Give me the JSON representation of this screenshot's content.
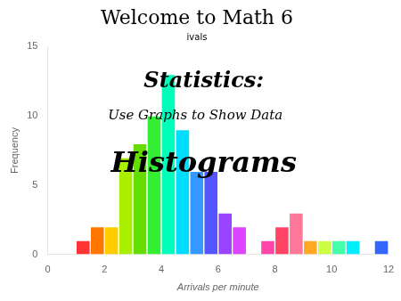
{
  "chart_data": {
    "type": "histogram",
    "title": "Welcome to Math 6",
    "subtitle": "ivals",
    "annotations": [
      "Statistics:",
      "Use Graphs to Show Data",
      "Histograms"
    ],
    "x_label": "Arrivals per minute",
    "y_label": "Frequency",
    "bins": [
      1.0,
      1.5,
      2.0,
      2.5,
      3.0,
      3.5,
      4.0,
      4.5,
      5.0,
      5.5,
      6.0,
      6.5,
      7.0,
      7.5,
      8.0,
      8.5,
      9.0,
      9.5,
      10.0,
      10.5,
      11.0,
      11.5,
      12.0
    ],
    "counts": [
      1,
      2,
      2,
      7,
      8,
      10,
      13,
      9,
      6,
      6,
      3,
      2,
      0,
      1,
      2,
      3,
      1,
      1,
      1,
      1,
      0,
      1
    ],
    "colors": [
      "#FF3333",
      "#FF7700",
      "#FFCC00",
      "#AAEE00",
      "#66DD00",
      "#33EE33",
      "#00FFBB",
      "#00DDFF",
      "#3399FF",
      "#5555FF",
      "#9944FF",
      "#DD44FF",
      "#FF44FF",
      "#FF44AA",
      "#FF4466",
      "#FF7799",
      "#FFAA22",
      "#CCFF44",
      "#44FFAA",
      "#00EEFF",
      "#33AAFF",
      "#3366FF"
    ],
    "xlim": [
      0,
      12
    ],
    "ylim": [
      0,
      15
    ],
    "xticks": [
      0,
      2,
      4,
      6,
      8,
      10,
      12
    ],
    "yticks": [
      0,
      5,
      10,
      15
    ],
    "grid": false
  }
}
